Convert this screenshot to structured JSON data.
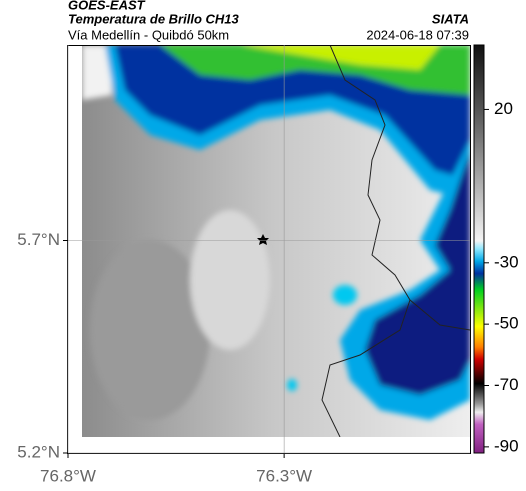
{
  "header": {
    "satellite": "GOES-EAST",
    "product": "Temperatura de Brillo CH13",
    "source": "SIATA",
    "route": "Vía Medellín - Quibdó 50km",
    "datetime": "2024-06-18 07:39"
  },
  "map": {
    "xlim": [
      -76.8,
      -75.87
    ],
    "ylim": [
      5.2,
      6.16
    ],
    "xticks": [
      {
        "value": -76.8,
        "label": "76.8°W"
      },
      {
        "value": -76.3,
        "label": "76.3°W"
      }
    ],
    "yticks": [
      {
        "value": 5.7,
        "label": "5.7°N"
      },
      {
        "value": 5.2,
        "label": "5.2°N"
      }
    ]
  },
  "colorbar": {
    "lim": [
      -92,
      41
    ],
    "ticks": [
      20,
      -30,
      -50,
      -70,
      -90
    ]
  }
}
